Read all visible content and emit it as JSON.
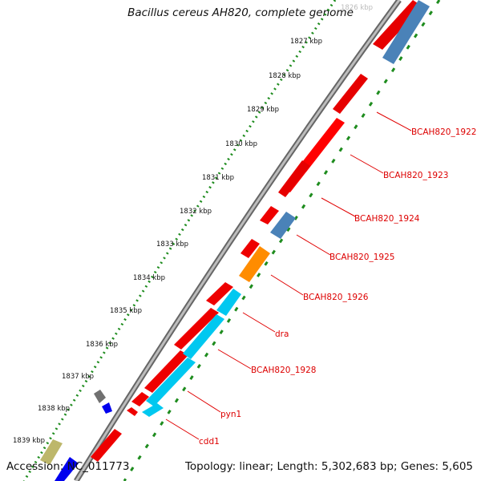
{
  "title": "Bacillus cereus AH820, complete genome",
  "footer": {
    "accession": "Accession: NC_011773",
    "stats": "Topology: linear; Length: 5,302,683 bp; Genes: 5,605"
  },
  "colors": {
    "cds": "#ee0000",
    "trna": "#4a82b8",
    "rrna": "#ff8c00",
    "cyan": "#00c8f0",
    "ruler_dots": "#1e8c1e",
    "label": "#dd0000",
    "backbone": "#888888"
  },
  "ticks": [
    "1826 kbp",
    "1827 kbp",
    "1828 kbp",
    "1829 kbp",
    "1830 kbp",
    "1831 kbp",
    "1832 kbp",
    "1833 kbp",
    "1834 kbp",
    "1835 kbp",
    "1836 kbp",
    "1837 kbp",
    "1838 kbp",
    "1839 kbp"
  ],
  "gene_labels": [
    "BCAH820_1922",
    "BCAH820_1923",
    "BCAH820_1924",
    "BCAH820_1925",
    "BCAH820_1926",
    "dra",
    "BCAH820_1928",
    "pyn1",
    "cdd1"
  ]
}
